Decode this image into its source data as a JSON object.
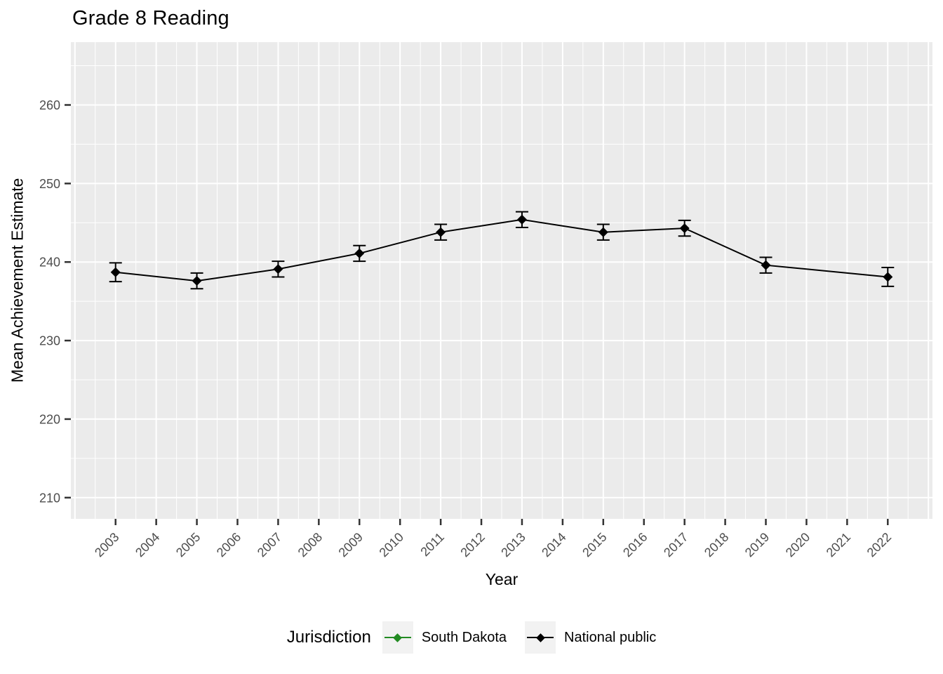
{
  "chart_data": {
    "type": "line",
    "title": "Grade 8 Reading",
    "xlabel": "Year",
    "ylabel": "Mean Achievement Estimate",
    "legend_title": "Jurisdiction",
    "legend_position": "bottom",
    "grid": true,
    "panel_background": "#EBEBEB",
    "x_domain": [
      2001.9,
      2023.1
    ],
    "y_domain": [
      207.3,
      268.0
    ],
    "x_ticks": [
      2003,
      2004,
      2005,
      2006,
      2007,
      2008,
      2009,
      2010,
      2011,
      2012,
      2013,
      2014,
      2015,
      2016,
      2017,
      2018,
      2019,
      2020,
      2021,
      2022
    ],
    "x_gridlines_major": [
      2002,
      2003,
      2004,
      2005,
      2006,
      2007,
      2008,
      2009,
      2010,
      2011,
      2012,
      2013,
      2014,
      2015,
      2016,
      2017,
      2018,
      2019,
      2020,
      2021,
      2022,
      2023
    ],
    "y_ticks": [
      210,
      220,
      230,
      240,
      250,
      260
    ],
    "y_gridlines_minor": [
      215,
      225,
      235,
      245,
      255,
      265
    ],
    "series": [
      {
        "name": "South Dakota",
        "color": "#228B22",
        "marker": "diamond",
        "x": [],
        "y": [],
        "error": []
      },
      {
        "name": "National public",
        "color": "#000000",
        "marker": "diamond",
        "x": [
          2003,
          2005,
          2007,
          2009,
          2011,
          2013,
          2015,
          2017,
          2019,
          2022
        ],
        "y": [
          238.7,
          237.6,
          239.1,
          241.1,
          243.8,
          245.4,
          243.8,
          244.3,
          239.6,
          238.1
        ],
        "error": [
          1.2,
          1.0,
          1.0,
          1.0,
          1.0,
          1.0,
          1.0,
          1.0,
          1.0,
          1.2
        ]
      }
    ]
  },
  "colors": {
    "panel_bg": "#EBEBEB",
    "gridline": "#FFFFFF",
    "tick_mark": "#333333",
    "tick_label": "#4D4D4D",
    "text": "#000000",
    "legend_key_bg": "#F2F2F2",
    "south_dakota": "#228B22",
    "national_public": "#000000"
  }
}
